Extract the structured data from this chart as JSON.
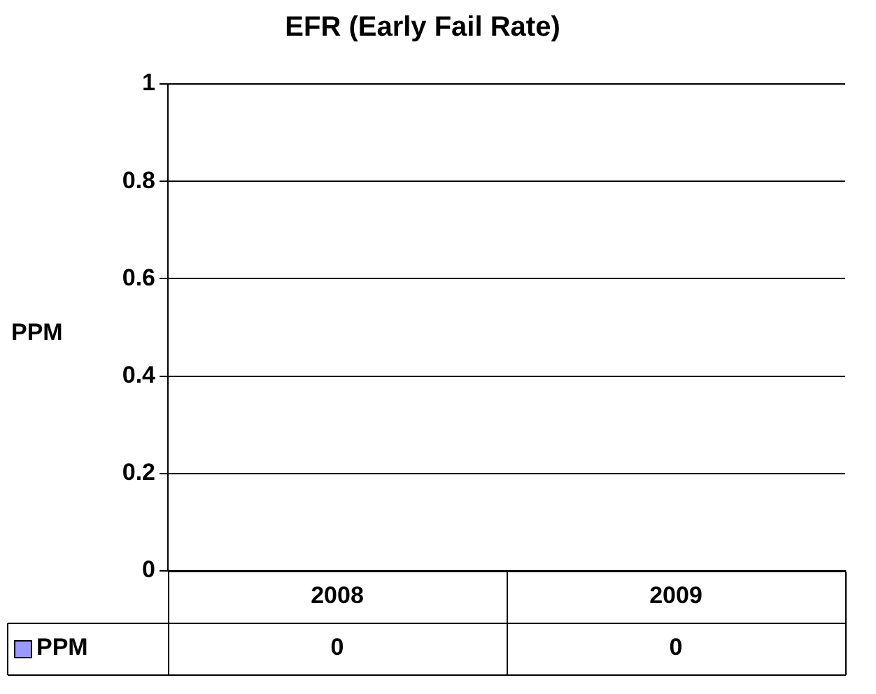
{
  "chart_data": {
    "type": "bar",
    "title": "EFR (Early Fail Rate)",
    "ylabel": "PPM",
    "categories": [
      "2008",
      "2009"
    ],
    "series": [
      {
        "name": "PPM",
        "color": "#9999ff",
        "values": [
          0,
          0
        ]
      }
    ],
    "ylim": [
      0,
      1
    ],
    "yticks": [
      0,
      0.2,
      0.4,
      0.6,
      0.8,
      1
    ],
    "grid": "y",
    "legend": "bottom",
    "data_labels": true
  }
}
